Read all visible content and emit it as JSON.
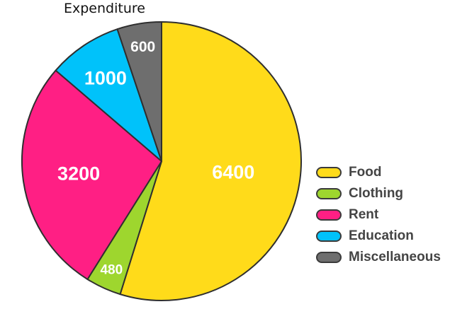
{
  "chart_data": {
    "type": "pie",
    "title": "Expenditure",
    "categories": [
      "Food",
      "Clothing",
      "Rent",
      "Education",
      "Miscellaneous"
    ],
    "values": [
      6400,
      480,
      3200,
      1000,
      600
    ],
    "labels": [
      "6400",
      "480",
      "3200",
      "1000",
      "600"
    ],
    "colors": [
      "#FFDB1A",
      "#9ED62E",
      "#FF1F84",
      "#00C2FA",
      "#6E6E6E"
    ],
    "legend_position": "right"
  }
}
